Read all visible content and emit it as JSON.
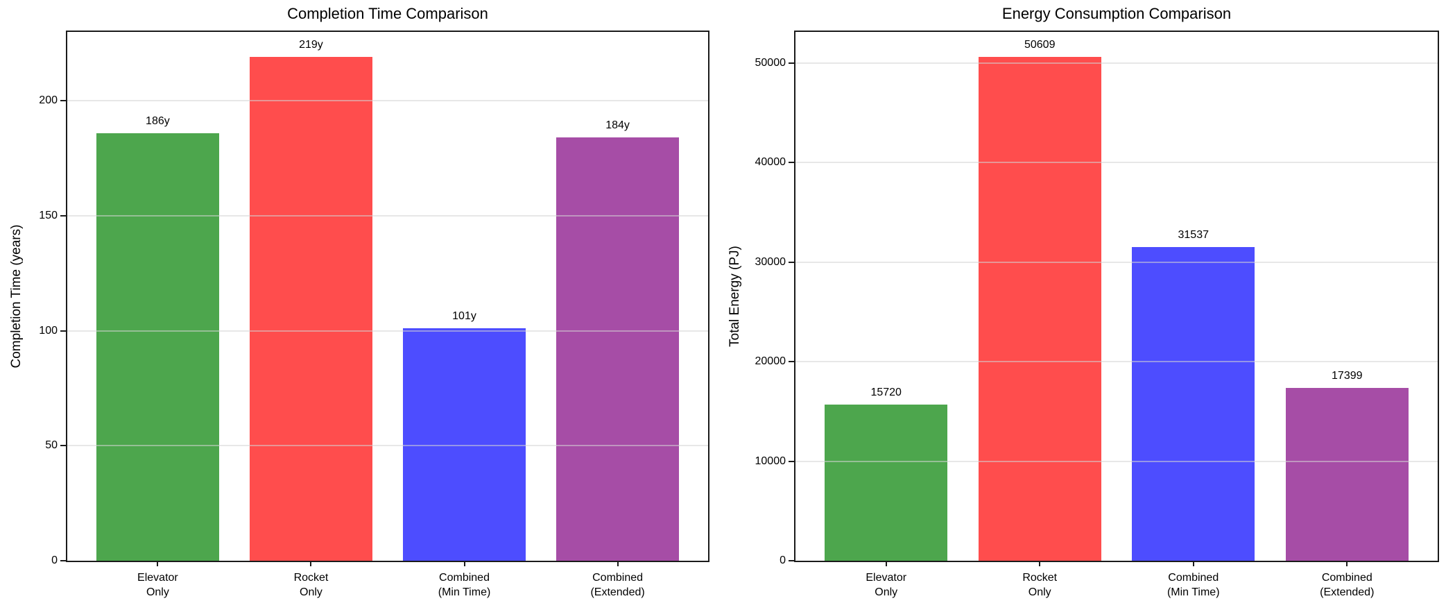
{
  "figure": {
    "background": "#ffffff",
    "spine_color": "#1a1a1a",
    "grid_color": "#d3d3d3"
  },
  "chart_data": [
    {
      "type": "bar",
      "title": "Completion Time Comparison",
      "xlabel": "",
      "ylabel": "Completion Time (years)",
      "categories": [
        "Elevator\nOnly",
        "Rocket\nOnly",
        "Combined\n(Min Time)",
        "Combined\n(Extended)"
      ],
      "values": [
        186,
        219,
        101,
        184
      ],
      "bar_labels": [
        "186y",
        "219y",
        "101y",
        "184y"
      ],
      "bar_colors": [
        "#4DA64D",
        "#FF4D4D",
        "#4D4DFF",
        "#A64DA6"
      ],
      "yticks": [
        0,
        50,
        100,
        150,
        200
      ],
      "ytick_labels": [
        "0",
        "50",
        "100",
        "150",
        "200"
      ],
      "ylim": [
        0,
        230
      ],
      "grid": true,
      "legend": "none"
    },
    {
      "type": "bar",
      "title": "Energy Consumption Comparison",
      "xlabel": "",
      "ylabel": "Total Energy (PJ)",
      "categories": [
        "Elevator\nOnly",
        "Rocket\nOnly",
        "Combined\n(Min Time)",
        "Combined\n(Extended)"
      ],
      "values": [
        15720,
        50609,
        31537,
        17399
      ],
      "bar_labels": [
        "15720",
        "50609",
        "31537",
        "17399"
      ],
      "bar_colors": [
        "#4DA64D",
        "#FF4D4D",
        "#4D4DFF",
        "#A64DA6"
      ],
      "yticks": [
        0,
        10000,
        20000,
        30000,
        40000,
        50000
      ],
      "ytick_labels": [
        "0",
        "10000",
        "20000",
        "30000",
        "40000",
        "50000"
      ],
      "ylim": [
        0,
        53140
      ],
      "grid": true,
      "legend": "none"
    }
  ]
}
